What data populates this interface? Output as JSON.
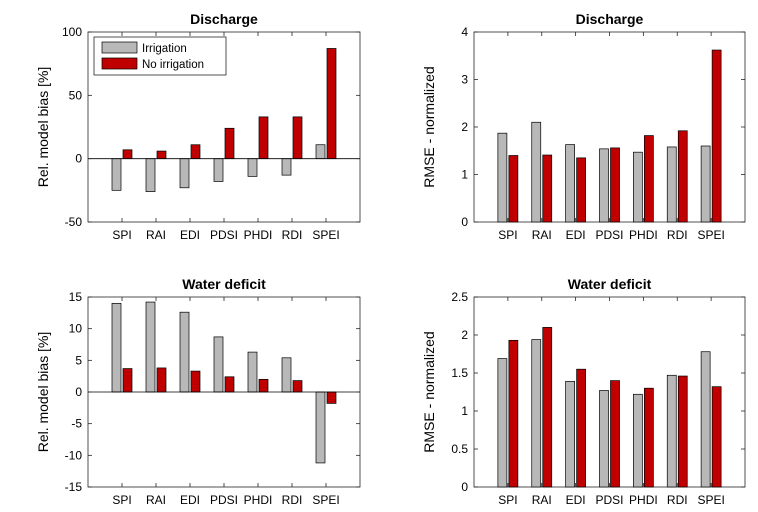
{
  "colors": {
    "irrigation": "#b8b8b8",
    "no_irrigation": "#c00000",
    "edge": "#000000"
  },
  "chart_data": [
    {
      "type": "bar",
      "title": "Discharge",
      "ylabel": "Rel. model bias [%]",
      "categories": [
        "SPI",
        "RAI",
        "EDI",
        "PDSI",
        "PHDI",
        "RDI",
        "SPEI"
      ],
      "ylim": [
        -50,
        100
      ],
      "yticks": [
        -50,
        0,
        50,
        100
      ],
      "yticklabels": [
        "-50",
        "0",
        "50",
        "100"
      ],
      "grid": false,
      "legend": "top-left",
      "series": [
        {
          "name": "Irrigation",
          "values": [
            -25,
            -26,
            -23,
            -18,
            -14,
            -13,
            11
          ]
        },
        {
          "name": "No irrigation",
          "values": [
            7,
            6,
            11,
            24,
            33,
            33,
            87
          ]
        }
      ]
    },
    {
      "type": "bar",
      "title": "Discharge",
      "ylabel": "RMSE - normalized",
      "categories": [
        "SPI",
        "RAI",
        "EDI",
        "PDSI",
        "PHDI",
        "RDI",
        "SPEI"
      ],
      "ylim": [
        0,
        4
      ],
      "yticks": [
        0,
        1,
        2,
        3,
        4
      ],
      "yticklabels": [
        "0",
        "1",
        "2",
        "3",
        "4"
      ],
      "grid": false,
      "series": [
        {
          "name": "Irrigation",
          "values": [
            1.87,
            2.1,
            1.63,
            1.54,
            1.47,
            1.58,
            1.6
          ]
        },
        {
          "name": "No irrigation",
          "values": [
            1.4,
            1.41,
            1.35,
            1.56,
            1.82,
            1.92,
            3.62
          ]
        }
      ]
    },
    {
      "type": "bar",
      "title": "Water deficit",
      "ylabel": "Rel. model bias [%]",
      "categories": [
        "SPI",
        "RAI",
        "EDI",
        "PDSI",
        "PHDI",
        "RDI",
        "SPEI"
      ],
      "ylim": [
        -15,
        15
      ],
      "yticks": [
        -15,
        -10,
        -5,
        0,
        5,
        10,
        15
      ],
      "yticklabels": [
        "-15",
        "-10",
        "-5",
        "0",
        "5",
        "10",
        "15"
      ],
      "grid": false,
      "series": [
        {
          "name": "Irrigation",
          "values": [
            14,
            14.2,
            12.6,
            8.7,
            6.3,
            5.4,
            -11.2
          ]
        },
        {
          "name": "No irrigation",
          "values": [
            3.7,
            3.8,
            3.3,
            2.4,
            2.0,
            1.8,
            -1.8
          ]
        }
      ]
    },
    {
      "type": "bar",
      "title": "Water deficit",
      "ylabel": "RMSE - normalized",
      "categories": [
        "SPI",
        "RAI",
        "EDI",
        "PDSI",
        "PHDI",
        "RDI",
        "SPEI"
      ],
      "ylim": [
        0,
        2.5
      ],
      "yticks": [
        0,
        0.5,
        1,
        1.5,
        2,
        2.5
      ],
      "yticklabels": [
        "0",
        "0.5",
        "1",
        "1.5",
        "2",
        "2.5"
      ],
      "grid": false,
      "series": [
        {
          "name": "Irrigation",
          "values": [
            1.69,
            1.94,
            1.39,
            1.27,
            1.22,
            1.47,
            1.78
          ]
        },
        {
          "name": "No irrigation",
          "values": [
            1.93,
            2.1,
            1.55,
            1.4,
            1.3,
            1.46,
            1.32
          ]
        }
      ]
    }
  ]
}
